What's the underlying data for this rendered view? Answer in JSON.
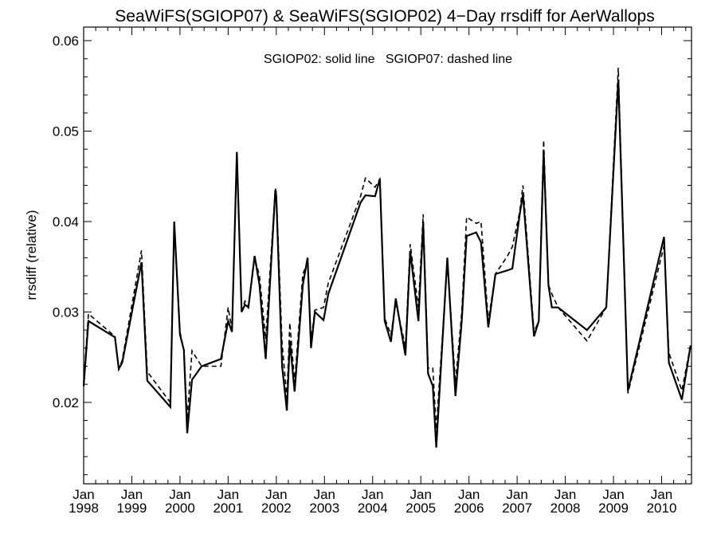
{
  "chart_data": {
    "type": "line",
    "title": "SeaWiFS(SGIOP07) & SeaWiFS(SGIOP02) 4−Day rrsdiff for AerWallops",
    "xlabel": "",
    "ylabel": "rrsdiff (relative)",
    "annotation": "SGIOP02: solid line   SGIOP07: dashed line",
    "xlim": [
      1998.0,
      2010.62
    ],
    "ylim": [
      0.011,
      0.0615
    ],
    "grid": false,
    "legend": "none",
    "x_ticks": [
      {
        "month": "Jan",
        "year": "1998",
        "x": 1998.0
      },
      {
        "month": "Jan",
        "year": "1999",
        "x": 1999.0
      },
      {
        "month": "Jan",
        "year": "2000",
        "x": 2000.0
      },
      {
        "month": "Jan",
        "year": "2001",
        "x": 2001.0
      },
      {
        "month": "Jan",
        "year": "2002",
        "x": 2002.0
      },
      {
        "month": "Jan",
        "year": "2003",
        "x": 2003.0
      },
      {
        "month": "Jan",
        "year": "2004",
        "x": 2004.0
      },
      {
        "month": "Jan",
        "year": "2005",
        "x": 2005.0
      },
      {
        "month": "Jan",
        "year": "2006",
        "x": 2006.0
      },
      {
        "month": "Jan",
        "year": "2007",
        "x": 2007.0
      },
      {
        "month": "Jan",
        "year": "2008",
        "x": 2008.0
      },
      {
        "month": "Jan",
        "year": "2009",
        "x": 2009.0
      },
      {
        "month": "Jan",
        "year": "2010",
        "x": 2010.0
      }
    ],
    "y_ticks": [
      {
        "label": "0.02",
        "value": 0.02
      },
      {
        "label": "0.03",
        "value": 0.03
      },
      {
        "label": "0.04",
        "value": 0.04
      },
      {
        "label": "0.05",
        "value": 0.05
      },
      {
        "label": "0.06",
        "value": 0.06
      }
    ],
    "series": [
      {
        "style": "solid",
        "points": [
          [
            1998.0,
            0.0218
          ],
          [
            1998.1,
            0.029
          ],
          [
            1998.65,
            0.0272
          ],
          [
            1998.73,
            0.0237
          ],
          [
            1998.8,
            0.0244
          ],
          [
            1999.2,
            0.0355
          ],
          [
            1999.32,
            0.0224
          ],
          [
            1999.8,
            0.0195
          ],
          [
            1999.88,
            0.04
          ],
          [
            2000.0,
            0.0275
          ],
          [
            2000.08,
            0.0258
          ],
          [
            2000.15,
            0.0166
          ],
          [
            2000.25,
            0.0225
          ],
          [
            2000.45,
            0.024
          ],
          [
            2000.85,
            0.0248
          ],
          [
            2001.0,
            0.029
          ],
          [
            2001.08,
            0.0278
          ],
          [
            2001.18,
            0.0477
          ],
          [
            2001.28,
            0.03
          ],
          [
            2001.35,
            0.0308
          ],
          [
            2001.42,
            0.0305
          ],
          [
            2001.55,
            0.0362
          ],
          [
            2001.65,
            0.033
          ],
          [
            2001.78,
            0.0248
          ],
          [
            2001.98,
            0.0435
          ],
          [
            2002.0,
            0.0428
          ],
          [
            2002.12,
            0.024
          ],
          [
            2002.22,
            0.0191
          ],
          [
            2002.28,
            0.0268
          ],
          [
            2002.38,
            0.0212
          ],
          [
            2002.55,
            0.033
          ],
          [
            2002.65,
            0.036
          ],
          [
            2002.72,
            0.026
          ],
          [
            2002.8,
            0.03
          ],
          [
            2002.98,
            0.0291
          ],
          [
            2003.08,
            0.032
          ],
          [
            2003.75,
            0.0421
          ],
          [
            2003.85,
            0.0429
          ],
          [
            2004.05,
            0.0428
          ],
          [
            2004.15,
            0.0447
          ],
          [
            2004.25,
            0.029
          ],
          [
            2004.38,
            0.0267
          ],
          [
            2004.48,
            0.0315
          ],
          [
            2004.68,
            0.0252
          ],
          [
            2004.78,
            0.0367
          ],
          [
            2004.95,
            0.029
          ],
          [
            2005.05,
            0.0398
          ],
          [
            2005.15,
            0.0232
          ],
          [
            2005.25,
            0.0218
          ],
          [
            2005.32,
            0.015
          ],
          [
            2005.55,
            0.036
          ],
          [
            2005.72,
            0.0207
          ],
          [
            2005.85,
            0.029
          ],
          [
            2005.95,
            0.0384
          ],
          [
            2006.15,
            0.0388
          ],
          [
            2006.25,
            0.0377
          ],
          [
            2006.4,
            0.0283
          ],
          [
            2006.55,
            0.0342
          ],
          [
            2006.8,
            0.0346
          ],
          [
            2006.9,
            0.0348
          ],
          [
            2007.05,
            0.0407
          ],
          [
            2007.12,
            0.043
          ],
          [
            2007.35,
            0.0273
          ],
          [
            2007.45,
            0.029
          ],
          [
            2007.55,
            0.0478
          ],
          [
            2007.65,
            0.033
          ],
          [
            2007.72,
            0.0305
          ],
          [
            2007.85,
            0.0305
          ],
          [
            2008.45,
            0.028
          ],
          [
            2008.85,
            0.0305
          ],
          [
            2009.1,
            0.0557
          ],
          [
            2009.3,
            0.0213
          ],
          [
            2010.05,
            0.0383
          ],
          [
            2010.15,
            0.0244
          ],
          [
            2010.42,
            0.0203
          ],
          [
            2010.6,
            0.0263
          ]
        ]
      },
      {
        "style": "dashed",
        "points": [
          [
            1998.0,
            0.0222
          ],
          [
            1998.1,
            0.0298
          ],
          [
            1998.65,
            0.0273
          ],
          [
            1998.73,
            0.0236
          ],
          [
            1998.8,
            0.0247
          ],
          [
            1999.2,
            0.0368
          ],
          [
            1999.32,
            0.0234
          ],
          [
            1999.8,
            0.02
          ],
          [
            1999.88,
            0.0395
          ],
          [
            2000.0,
            0.0278
          ],
          [
            2000.08,
            0.0258
          ],
          [
            2000.15,
            0.0182
          ],
          [
            2000.25,
            0.0257
          ],
          [
            2000.45,
            0.024
          ],
          [
            2000.85,
            0.024
          ],
          [
            2001.0,
            0.0305
          ],
          [
            2001.08,
            0.028
          ],
          [
            2001.18,
            0.0475
          ],
          [
            2001.28,
            0.0302
          ],
          [
            2001.35,
            0.0312
          ],
          [
            2001.42,
            0.0305
          ],
          [
            2001.55,
            0.036
          ],
          [
            2001.65,
            0.034
          ],
          [
            2001.78,
            0.027
          ],
          [
            2001.98,
            0.0437
          ],
          [
            2002.0,
            0.0432
          ],
          [
            2002.12,
            0.0265
          ],
          [
            2002.22,
            0.0205
          ],
          [
            2002.28,
            0.0288
          ],
          [
            2002.38,
            0.0222
          ],
          [
            2002.55,
            0.0342
          ],
          [
            2002.65,
            0.0355
          ],
          [
            2002.72,
            0.0268
          ],
          [
            2002.8,
            0.0302
          ],
          [
            2002.98,
            0.0305
          ],
          [
            2003.08,
            0.0332
          ],
          [
            2003.75,
            0.0428
          ],
          [
            2003.85,
            0.0448
          ],
          [
            2004.05,
            0.0438
          ],
          [
            2004.15,
            0.0447
          ],
          [
            2004.25,
            0.0293
          ],
          [
            2004.38,
            0.0275
          ],
          [
            2004.48,
            0.031
          ],
          [
            2004.68,
            0.0262
          ],
          [
            2004.78,
            0.0375
          ],
          [
            2004.95,
            0.0305
          ],
          [
            2005.05,
            0.0408
          ],
          [
            2005.15,
            0.0238
          ],
          [
            2005.25,
            0.0238
          ],
          [
            2005.32,
            0.017
          ],
          [
            2005.55,
            0.0355
          ],
          [
            2005.72,
            0.0222
          ],
          [
            2005.85,
            0.03
          ],
          [
            2005.95,
            0.0405
          ],
          [
            2006.15,
            0.0398
          ],
          [
            2006.25,
            0.04
          ],
          [
            2006.4,
            0.029
          ],
          [
            2006.55,
            0.0342
          ],
          [
            2006.8,
            0.0362
          ],
          [
            2006.9,
            0.0372
          ],
          [
            2007.05,
            0.041
          ],
          [
            2007.12,
            0.044
          ],
          [
            2007.35,
            0.0278
          ],
          [
            2007.45,
            0.029
          ],
          [
            2007.55,
            0.049
          ],
          [
            2007.65,
            0.033
          ],
          [
            2007.72,
            0.032
          ],
          [
            2007.85,
            0.0305
          ],
          [
            2008.45,
            0.0268
          ],
          [
            2008.85,
            0.0305
          ],
          [
            2009.1,
            0.057
          ],
          [
            2009.3,
            0.021
          ],
          [
            2010.05,
            0.0373
          ],
          [
            2010.15,
            0.0255
          ],
          [
            2010.42,
            0.0213
          ],
          [
            2010.6,
            0.0263
          ]
        ]
      }
    ]
  }
}
